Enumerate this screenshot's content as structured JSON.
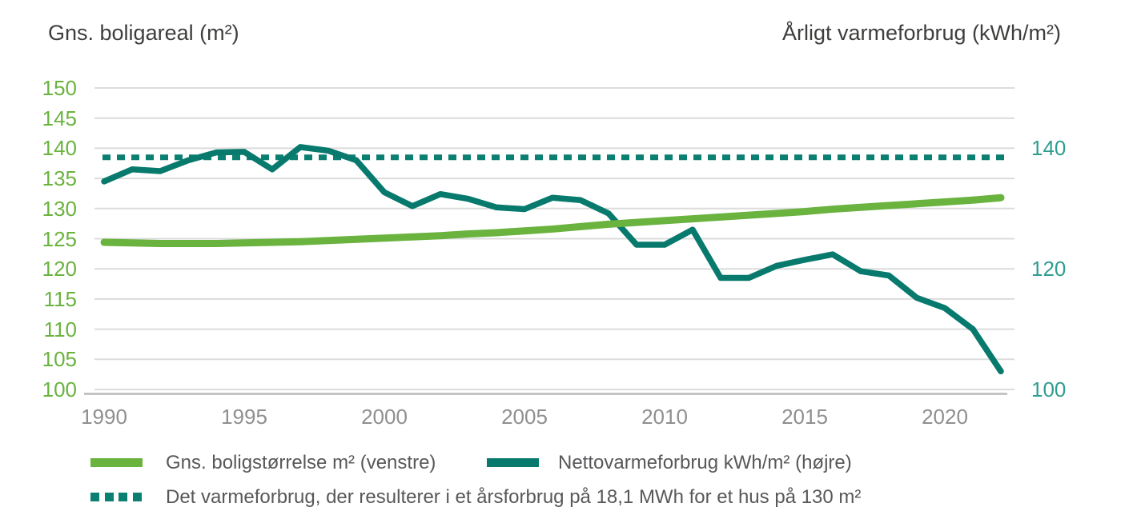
{
  "chart_data": {
    "type": "line",
    "title": "",
    "years": [
      1990,
      1991,
      1992,
      1993,
      1994,
      1995,
      1996,
      1997,
      1998,
      1999,
      2000,
      2001,
      2002,
      2003,
      2004,
      2005,
      2006,
      2007,
      2008,
      2009,
      2010,
      2011,
      2012,
      2013,
      2014,
      2015,
      2016,
      2017,
      2018,
      2019,
      2020,
      2021,
      2022
    ],
    "x_ticks": [
      1990,
      1995,
      2000,
      2005,
      2010,
      2015,
      2020
    ],
    "left_axis": {
      "title": "Gns. boligareal (m²)",
      "min": 100,
      "max": 150,
      "ticks": [
        150,
        145,
        140,
        135,
        130,
        125,
        120,
        115,
        110,
        105,
        100
      ],
      "color": "#6ab33f"
    },
    "right_axis": {
      "title": "Årligt varmeforbrug (kWh/m²)",
      "min": 100,
      "max": 150,
      "ticks": [
        140,
        120,
        100
      ],
      "color": "#2f9d90"
    },
    "grid": true,
    "legend_position": "bottom",
    "series": [
      {
        "name": "Gns. boligstørrelse m² (venstre)",
        "axis": "left",
        "style": "solid",
        "color": "#6ab33f",
        "values": [
          124.4,
          124.3,
          124.2,
          124.2,
          124.2,
          124.3,
          124.4,
          124.5,
          124.7,
          124.9,
          125.1,
          125.3,
          125.5,
          125.8,
          126.0,
          126.3,
          126.6,
          127.0,
          127.4,
          127.7,
          128.0,
          128.3,
          128.6,
          128.9,
          129.2,
          129.5,
          129.9,
          130.2,
          130.5,
          130.8,
          131.1,
          131.4,
          131.8
        ]
      },
      {
        "name": "Nettovarmeforbrug kWh/m² (højre)",
        "axis": "right",
        "style": "solid",
        "color": "#087a6d",
        "values": [
          134.5,
          136.5,
          136.2,
          138.0,
          139.3,
          139.4,
          136.5,
          140.2,
          139.6,
          138.0,
          132.7,
          130.4,
          132.4,
          131.6,
          130.2,
          129.9,
          131.8,
          131.4,
          129.2,
          124.0,
          124.0,
          126.5,
          118.5,
          118.5,
          120.5,
          121.5,
          122.4,
          119.6,
          118.9,
          115.2,
          113.5,
          110.0,
          103.0
        ]
      },
      {
        "name": "Det varmeforbrug, der resulterer i et årsforbrug på 18,1 MWh for et hus på 130 m²",
        "axis": "right",
        "style": "dotted",
        "color": "#0b7f72",
        "value": 138.5
      }
    ]
  },
  "colors": {
    "gridline": "#dcdcdc",
    "axis_line": "#c4c4c4",
    "x_tick_text": "#8f8f8f",
    "legend_text": "#58585b",
    "title_text": "#3e3e3d"
  }
}
